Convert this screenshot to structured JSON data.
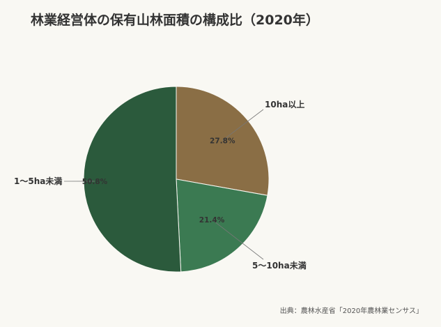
{
  "title": "林業経営体の保有山林面積の構成比（2020年）",
  "source": "出典：農林水産省「2020年農林業センサス」",
  "chart_data": {
    "type": "pie",
    "title": "林業経営体の保有山林面積の構成比（2020年）",
    "slices": [
      {
        "label": "10ha以上",
        "value": 27.8,
        "value_label": "27.8%",
        "color": "#8a6e45"
      },
      {
        "label": "5〜10ha未満",
        "value": 21.4,
        "value_label": "21.4%",
        "color": "#3b7a52"
      },
      {
        "label": "1〜5ha未満",
        "value": 50.8,
        "value_label": "50.8%",
        "color": "#2b5a3c"
      }
    ],
    "start": "12 o'clock",
    "direction": "clockwise"
  }
}
